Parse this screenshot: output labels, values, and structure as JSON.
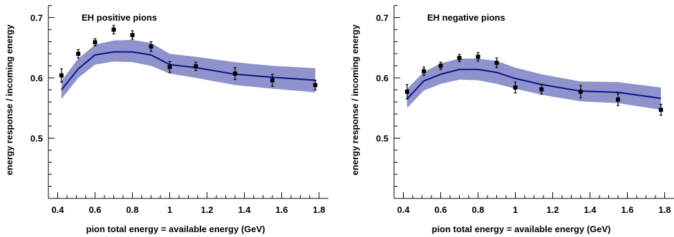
{
  "chart_data": [
    {
      "type": "line",
      "title": "EH positive pions",
      "xlabel": "pion total energy = available energy (GeV)",
      "ylabel": "energy response / incoming energy",
      "xlim": [
        0.35,
        1.85
      ],
      "ylim": [
        0.4,
        0.72
      ],
      "xticks": [
        0.4,
        0.6,
        0.8,
        1.0,
        1.2,
        1.4,
        1.6,
        1.8
      ],
      "xtick_labels": [
        "0.4",
        "0.6",
        "0.8",
        "1",
        "1.2",
        "1.4",
        "1.6",
        "1.8"
      ],
      "yticks": [
        0.5,
        0.6,
        0.7
      ],
      "ytick_labels": [
        "0.5",
        "0.6",
        "0.7"
      ],
      "band_color": "#8f93cc",
      "line_color": "#0a0f8a",
      "marker_color": "#000000",
      "series": [
        {
          "kind": "band",
          "x": [
            0.42,
            0.51,
            0.6,
            0.7,
            0.8,
            0.9,
            1.0,
            1.14,
            1.35,
            1.55,
            1.78
          ],
          "y_low": [
            0.565,
            0.6,
            0.622,
            0.627,
            0.626,
            0.62,
            0.607,
            0.6,
            0.588,
            0.582,
            0.576
          ],
          "y_high": [
            0.595,
            0.632,
            0.655,
            0.662,
            0.663,
            0.658,
            0.64,
            0.635,
            0.626,
            0.62,
            0.616
          ]
        },
        {
          "kind": "line",
          "x": [
            0.42,
            0.51,
            0.6,
            0.7,
            0.8,
            0.9,
            1.0,
            1.14,
            1.35,
            1.55,
            1.78
          ],
          "y": [
            0.58,
            0.615,
            0.638,
            0.643,
            0.643,
            0.638,
            0.622,
            0.617,
            0.606,
            0.601,
            0.596
          ]
        },
        {
          "kind": "points",
          "x": [
            0.42,
            0.51,
            0.6,
            0.7,
            0.8,
            0.9,
            1.0,
            1.14,
            1.35,
            1.55,
            1.78
          ],
          "y": [
            0.604,
            0.64,
            0.659,
            0.68,
            0.671,
            0.652,
            0.618,
            0.619,
            0.607,
            0.596,
            0.588
          ],
          "err": [
            0.011,
            0.007,
            0.006,
            0.007,
            0.007,
            0.008,
            0.009,
            0.007,
            0.01,
            0.01,
            0.008
          ]
        }
      ]
    },
    {
      "type": "line",
      "title": "EH negative pions",
      "xlabel": "pion total energy = available energy (GeV)",
      "ylabel": "energy response / incoming energy",
      "xlim": [
        0.35,
        1.85
      ],
      "ylim": [
        0.4,
        0.72
      ],
      "xticks": [
        0.4,
        0.6,
        0.8,
        1.0,
        1.2,
        1.4,
        1.6,
        1.8
      ],
      "xtick_labels": [
        "0.4",
        "0.6",
        "0.8",
        "1",
        "1.2",
        "1.4",
        "1.6",
        "1.8"
      ],
      "yticks": [
        0.5,
        0.6,
        0.7
      ],
      "ytick_labels": [
        "0.5",
        "0.6",
        "0.7"
      ],
      "band_color": "#8f93cc",
      "line_color": "#0a0f8a",
      "marker_color": "#000000",
      "series": [
        {
          "kind": "band",
          "x": [
            0.42,
            0.51,
            0.6,
            0.7,
            0.8,
            0.9,
            1.0,
            1.14,
            1.35,
            1.55,
            1.78
          ],
          "y_low": [
            0.55,
            0.579,
            0.59,
            0.597,
            0.596,
            0.59,
            0.582,
            0.572,
            0.561,
            0.558,
            0.547
          ],
          "y_high": [
            0.582,
            0.61,
            0.624,
            0.632,
            0.632,
            0.628,
            0.617,
            0.606,
            0.594,
            0.593,
            0.584
          ]
        },
        {
          "kind": "line",
          "x": [
            0.42,
            0.51,
            0.6,
            0.7,
            0.8,
            0.9,
            1.0,
            1.14,
            1.35,
            1.55,
            1.78
          ],
          "y": [
            0.565,
            0.595,
            0.606,
            0.614,
            0.614,
            0.609,
            0.599,
            0.589,
            0.578,
            0.576,
            0.566
          ]
        },
        {
          "kind": "points",
          "x": [
            0.42,
            0.51,
            0.6,
            0.7,
            0.8,
            0.9,
            1.0,
            1.14,
            1.35,
            1.55,
            1.78
          ],
          "y": [
            0.577,
            0.611,
            0.62,
            0.633,
            0.635,
            0.625,
            0.584,
            0.581,
            0.577,
            0.564,
            0.547
          ],
          "err": [
            0.012,
            0.007,
            0.006,
            0.006,
            0.007,
            0.008,
            0.009,
            0.008,
            0.01,
            0.01,
            0.009
          ]
        }
      ]
    }
  ]
}
